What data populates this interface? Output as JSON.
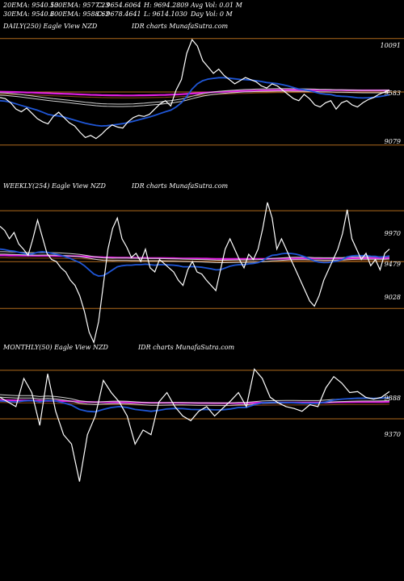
{
  "header": {
    "row1": [
      "20EMA: 9540.53",
      "100EMA: 9577.23",
      "C: 9654.6064",
      "H: 9694.2809",
      "Avg Vol: 0.01 M"
    ],
    "row2": [
      "30EMA: 9540.6",
      "200EMA: 9588.62",
      "C: 9678.4641",
      "L: 9614.1030",
      "Day Vol: 0  M"
    ]
  },
  "colors": {
    "price": "#ffffff",
    "ema_blue": "#1f56d6",
    "ema_magenta": "#e01ee0",
    "ema_white_band": "#cfcfcf",
    "ema_brown": "#8b4a1a",
    "level_line": "#b06a1c",
    "background": "#000000"
  },
  "panels": [
    {
      "title": "DAILY(250) Eagle  View  NZD",
      "watermark": "IDR charts MunafaSutra.com",
      "levels": [
        "10091",
        "9583",
        "9079"
      ]
    },
    {
      "title": "WEEKLY(254) Eagle  View  NZD",
      "watermark": "IDR charts MunafaSutra.com",
      "levels": [
        "9970",
        "9479",
        "9028"
      ]
    },
    {
      "title": "MONTHLY(50) Eagle  View  NZD",
      "watermark": "IDR charts MunafaSutra.com",
      "levels": [
        "9888",
        "9370"
      ]
    }
  ],
  "chart_data": [
    {
      "type": "line",
      "title": "DAILY(250) Eagle  View  NZD",
      "ylim": [
        9000,
        10150
      ],
      "reference_levels": [
        10091,
        9583,
        9079
      ],
      "series": [
        {
          "values": [
            9530,
            9520,
            9480,
            9420,
            9395,
            9430,
            9380,
            9330,
            9300,
            9280,
            9350,
            9390,
            9340,
            9290,
            9260,
            9200,
            9150,
            9170,
            9140,
            9180,
            9230,
            9270,
            9250,
            9240,
            9300,
            9340,
            9360,
            9350,
            9370,
            9420,
            9470,
            9500,
            9450,
            9600,
            9700,
            9950,
            10080,
            10020,
            9880,
            9820,
            9760,
            9800,
            9740,
            9700,
            9660,
            9690,
            9720,
            9700,
            9680,
            9640,
            9620,
            9660,
            9640,
            9600,
            9560,
            9520,
            9500,
            9560,
            9520,
            9460,
            9440,
            9480,
            9500,
            9420,
            9480,
            9500,
            9460,
            9440,
            9480,
            9510,
            9530,
            9560,
            9580,
            9600
          ]
        },
        {
          "values": [
            9500,
            9495,
            9485,
            9470,
            9455,
            9440,
            9425,
            9410,
            9390,
            9370,
            9360,
            9355,
            9345,
            9330,
            9315,
            9300,
            9285,
            9275,
            9265,
            9260,
            9262,
            9268,
            9275,
            9282,
            9292,
            9305,
            9318,
            9332,
            9345,
            9360,
            9378,
            9395,
            9410,
            9440,
            9480,
            9540,
            9610,
            9660,
            9690,
            9705,
            9712,
            9718,
            9718,
            9714,
            9708,
            9702,
            9700,
            9696,
            9690,
            9682,
            9672,
            9668,
            9662,
            9652,
            9640,
            9625,
            9610,
            9604,
            9596,
            9582,
            9568,
            9562,
            9558,
            9546,
            9542,
            9540,
            9534,
            9528,
            9526,
            9528,
            9532,
            9538,
            9546,
            9556
          ]
        },
        {
          "values": [
            9560,
            9557,
            9553,
            9548,
            9542,
            9536,
            9530,
            9524,
            9517,
            9510,
            9504,
            9499,
            9494,
            9488,
            9482,
            9476,
            9470,
            9465,
            9460,
            9456,
            9454,
            9453,
            9452,
            9452,
            9453,
            9455,
            9458,
            9461,
            9465,
            9469,
            9474,
            9480,
            9485,
            9492,
            9501,
            9513,
            9527,
            9540,
            9551,
            9560,
            9567,
            9573,
            9578,
            9582,
            9585,
            9588,
            9591,
            9593,
            9595,
            9596,
            9597,
            9598,
            9599,
            9599,
            9599,
            9598,
            9597,
            9597,
            9596,
            9595,
            9593,
            9592,
            9591,
            9589,
            9588,
            9587,
            9586,
            9584,
            9583,
            9583,
            9583,
            9583,
            9584,
            9585
          ]
        },
        {
          "values": [
            9585,
            9584,
            9583,
            9582,
            9580,
            9578,
            9577,
            9575,
            9573,
            9571,
            9569,
            9567,
            9566,
            9564,
            9562,
            9560,
            9558,
            9556,
            9555,
            9553,
            9552,
            9551,
            9551,
            9550,
            9550,
            9550,
            9551,
            9551,
            9552,
            9553,
            9554,
            9555,
            9557,
            9559,
            9561,
            9564,
            9568,
            9571,
            9575,
            9578,
            9581,
            9584,
            9586,
            9588,
            9590,
            9592,
            9593,
            9594,
            9596,
            9597,
            9598,
            9599,
            9600,
            9600,
            9601,
            9601,
            9601,
            9601,
            9601,
            9601,
            9601,
            9601,
            9600,
            9600,
            9600,
            9599,
            9599,
            9598,
            9598,
            9598,
            9598,
            9598,
            9598,
            9598
          ]
        }
      ]
    },
    {
      "type": "line",
      "title": "WEEKLY(254) Eagle  View  NZD",
      "ylim": [
        8750,
        10150
      ],
      "reference_levels": [
        9970,
        9479,
        9028
      ],
      "series": [
        {
          "values": [
            9820,
            9780,
            9700,
            9760,
            9650,
            9600,
            9540,
            9700,
            9880,
            9720,
            9560,
            9500,
            9480,
            9420,
            9380,
            9300,
            9250,
            9150,
            9000,
            8800,
            8700,
            8900,
            9250,
            9600,
            9800,
            9900,
            9700,
            9620,
            9520,
            9560,
            9480,
            9600,
            9420,
            9380,
            9500,
            9460,
            9420,
            9380,
            9300,
            9250,
            9400,
            9480,
            9380,
            9360,
            9300,
            9250,
            9200,
            9400,
            9600,
            9700,
            9600,
            9500,
            9420,
            9550,
            9500,
            9600,
            9800,
            10050,
            9900,
            9600,
            9700,
            9600,
            9500,
            9400,
            9300,
            9200,
            9100,
            9050,
            9150,
            9300,
            9400,
            9500,
            9600,
            9750,
            9980,
            9700,
            9600,
            9500,
            9560,
            9440,
            9500,
            9400,
            9560,
            9600
          ]
        },
        {
          "values": [
            9600,
            9595,
            9585,
            9580,
            9570,
            9560,
            9550,
            9555,
            9570,
            9575,
            9570,
            9560,
            9550,
            9540,
            9525,
            9510,
            9490,
            9470,
            9440,
            9400,
            9360,
            9340,
            9345,
            9370,
            9400,
            9430,
            9440,
            9445,
            9445,
            9450,
            9450,
            9455,
            9450,
            9445,
            9450,
            9450,
            9448,
            9445,
            9440,
            9430,
            9430,
            9432,
            9430,
            9425,
            9418,
            9410,
            9400,
            9402,
            9418,
            9435,
            9445,
            9450,
            9450,
            9458,
            9462,
            9470,
            9490,
            9520,
            9540,
            9545,
            9555,
            9560,
            9558,
            9552,
            9540,
            9525,
            9505,
            9485,
            9475,
            9470,
            9472,
            9478,
            9485,
            9500,
            9525,
            9535,
            9538,
            9536,
            9538,
            9532,
            9530,
            9522,
            9528,
            9535
          ]
        },
        {
          "values": [
            9560,
            9560,
            9558,
            9557,
            9555,
            9553,
            9551,
            9550,
            9550,
            9551,
            9551,
            9550,
            9549,
            9547,
            9544,
            9541,
            9537,
            9533,
            9527,
            9520,
            9512,
            9505,
            9500,
            9498,
            9497,
            9498,
            9498,
            9498,
            9497,
            9497,
            9496,
            9496,
            9495,
            9494,
            9494,
            9493,
            9492,
            9491,
            9490,
            9488,
            9487,
            9486,
            9485,
            9484,
            9482,
            9480,
            9478,
            9477,
            9477,
            9478,
            9479,
            9480,
            9480,
            9481,
            9482,
            9483,
            9486,
            9490,
            9494,
            9497,
            9500,
            9503,
            9505,
            9506,
            9506,
            9506,
            9505,
            9503,
            9502,
            9501,
            9501,
            9501,
            9502,
            9503,
            9506,
            9508,
            9509,
            9510,
            9511,
            9511,
            9511,
            9511,
            9511,
            9512
          ]
        },
        {
          "values": [
            9540,
            9540,
            9539,
            9539,
            9538,
            9537,
            9537,
            9536,
            9536,
            9536,
            9536,
            9536,
            9535,
            9535,
            9534,
            9533,
            9532,
            9531,
            9529,
            9527,
            9525,
            9523,
            9521,
            9520,
            9519,
            9518,
            9517,
            9517,
            9516,
            9516,
            9515,
            9515,
            9514,
            9514,
            9513,
            9513,
            9512,
            9512,
            9511,
            9510,
            9510,
            9509,
            9509,
            9508,
            9508,
            9507,
            9506,
            9506,
            9505,
            9505,
            9505,
            9505,
            9505,
            9505,
            9505,
            9505,
            9506,
            9506,
            9507,
            9508,
            9508,
            9509,
            9510,
            9510,
            9511,
            9511,
            9511,
            9511,
            9511,
            9511,
            9511,
            9511,
            9511,
            9511,
            9512,
            9512,
            9512,
            9513,
            9513,
            9513,
            9513,
            9513,
            9513,
            9513
          ]
        }
      ]
    },
    {
      "type": "line",
      "title": "MONTHLY(50) Eagle  View  NZD",
      "ylim": [
        8500,
        10050
      ],
      "reference_levels": [
        9888,
        9370
      ],
      "series": [
        {
          "values": [
            9600,
            9550,
            9500,
            9800,
            9650,
            9300,
            9850,
            9450,
            9200,
            9100,
            8700,
            9200,
            9400,
            9780,
            9650,
            9550,
            9400,
            9100,
            9250,
            9200,
            9550,
            9650,
            9500,
            9400,
            9350,
            9450,
            9500,
            9400,
            9480,
            9560,
            9650,
            9500,
            9900,
            9800,
            9600,
            9540,
            9500,
            9480,
            9450,
            9520,
            9500,
            9700,
            9820,
            9750,
            9650,
            9660,
            9600,
            9580,
            9600,
            9660
          ]
        },
        {
          "values": [
            9560,
            9555,
            9550,
            9560,
            9565,
            9550,
            9565,
            9560,
            9540,
            9515,
            9470,
            9450,
            9445,
            9470,
            9490,
            9500,
            9490,
            9470,
            9460,
            9450,
            9460,
            9475,
            9480,
            9478,
            9470,
            9468,
            9470,
            9465,
            9466,
            9475,
            9490,
            9492,
            9520,
            9540,
            9545,
            9545,
            9543,
            9540,
            9536,
            9535,
            9535,
            9550,
            9570,
            9580,
            9585,
            9590,
            9590,
            9588,
            9590,
            9598
          ]
        },
        {
          "values": [
            9610,
            9605,
            9600,
            9600,
            9600,
            9590,
            9595,
            9590,
            9580,
            9565,
            9545,
            9535,
            9530,
            9535,
            9540,
            9542,
            9540,
            9534,
            9528,
            9522,
            9522,
            9525,
            9527,
            9527,
            9525,
            9523,
            9523,
            9522,
            9521,
            9523,
            9527,
            9528,
            9536,
            9543,
            9546,
            9547,
            9548,
            9548,
            9547,
            9547,
            9547,
            9552,
            9559,
            9563,
            9566,
            9568,
            9569,
            9569,
            9570,
            9572
          ]
        },
        {
          "values": [
            9570,
            9568,
            9566,
            9566,
            9565,
            9563,
            9563,
            9562,
            9560,
            9557,
            9553,
            9550,
            9548,
            9548,
            9547,
            9547,
            9546,
            9544,
            9542,
            9540,
            9540,
            9540,
            9540,
            9539,
            9539,
            9538,
            9538,
            9537,
            9537,
            9537,
            9538,
            9538,
            9540,
            9541,
            9542,
            9543,
            9543,
            9543,
            9543,
            9543,
            9543,
            9544,
            9546,
            9547,
            9548,
            9549,
            9549,
            9549,
            9550,
            9551
          ]
        }
      ]
    }
  ]
}
